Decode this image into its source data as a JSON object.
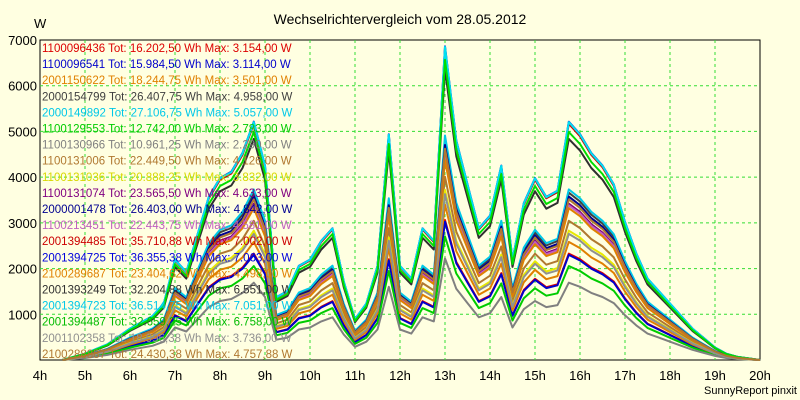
{
  "chart_data": {
    "type": "line",
    "title": "Wechselrichtervergleich vom 28.05.2012",
    "ylabel": "W",
    "footer": "SunnyReport pinxit",
    "ylim": [
      0,
      7000
    ],
    "xlim": [
      4,
      20
    ],
    "grid": true,
    "legend_position": "top-left",
    "y_ticks": [
      1000,
      2000,
      3000,
      4000,
      5000,
      6000,
      7000
    ],
    "x_ticks": [
      {
        "value": 4,
        "label": "4h"
      },
      {
        "value": 5,
        "label": "5h"
      },
      {
        "value": 6,
        "label": "6h"
      },
      {
        "value": 7,
        "label": "7h"
      },
      {
        "value": 8,
        "label": "8h"
      },
      {
        "value": 9,
        "label": "9h"
      },
      {
        "value": 10,
        "label": "10h"
      },
      {
        "value": 11,
        "label": "11h"
      },
      {
        "value": 12,
        "label": "12h"
      },
      {
        "value": 13,
        "label": "13h"
      },
      {
        "value": 14,
        "label": "14h"
      },
      {
        "value": 15,
        "label": "15h"
      },
      {
        "value": 16,
        "label": "16h"
      },
      {
        "value": 17,
        "label": "17h"
      },
      {
        "value": 18,
        "label": "18h"
      },
      {
        "value": 19,
        "label": "19h"
      },
      {
        "value": 20,
        "label": "20h"
      }
    ],
    "x": [
      4.5,
      5,
      5.5,
      6,
      6.5,
      6.75,
      7,
      7.25,
      7.5,
      7.75,
      8,
      8.25,
      8.5,
      8.75,
      9,
      9.25,
      9.5,
      9.75,
      10,
      10.25,
      10.5,
      10.75,
      11,
      11.25,
      11.5,
      11.75,
      12,
      12.25,
      12.5,
      12.75,
      13,
      13.25,
      13.5,
      13.75,
      14,
      14.25,
      14.5,
      14.75,
      15,
      15.25,
      15.5,
      15.75,
      16,
      16.25,
      16.5,
      16.75,
      17,
      17.25,
      17.5,
      17.75,
      18,
      18.25,
      18.5,
      18.75,
      19,
      19.25,
      19.5,
      20
    ],
    "base_shape": [
      0.0,
      0.02,
      0.05,
      0.1,
      0.14,
      0.18,
      0.32,
      0.28,
      0.4,
      0.52,
      0.58,
      0.6,
      0.66,
      0.76,
      0.62,
      0.2,
      0.22,
      0.3,
      0.32,
      0.38,
      0.42,
      0.25,
      0.13,
      0.18,
      0.3,
      0.72,
      0.3,
      0.26,
      0.42,
      0.38,
      1.0,
      0.7,
      0.56,
      0.42,
      0.46,
      0.62,
      0.32,
      0.5,
      0.58,
      0.52,
      0.54,
      0.76,
      0.72,
      0.66,
      0.62,
      0.56,
      0.44,
      0.34,
      0.26,
      0.22,
      0.18,
      0.14,
      0.1,
      0.07,
      0.04,
      0.02,
      0.01,
      0.0
    ],
    "series": [
      {
        "id": "1100096436",
        "total": "16.202,50",
        "max": "3.154,00",
        "max_value": 3154,
        "color": "#dd0000",
        "text_color": "#dd0000",
        "legend_text": "1100096436 Tot: 16.202,50 Wh Max: 3.154,00 W"
      },
      {
        "id": "1100096541",
        "total": "15.984,50",
        "max": "3.114,00",
        "max_value": 3114,
        "color": "#0000cc",
        "text_color": "#0000cc",
        "legend_text": "1100096541 Tot: 15.984,50 Wh Max: 3.114,00 W"
      },
      {
        "id": "2001150622",
        "total": "18.244,75",
        "max": "3.501,00",
        "max_value": 3501,
        "color": "#e08000",
        "text_color": "#e08000",
        "legend_text": "2001150622 Tot: 18.244,75 Wh Max: 3.501,00 W"
      },
      {
        "id": "2000154799",
        "total": "26.407,75",
        "max": "4.958,00",
        "max_value": 4958,
        "color": "#404040",
        "text_color": "#404040",
        "legend_text": "2000154799 Tot: 26.407,75 Wh Max: 4.958,00 W"
      },
      {
        "id": "2000149892",
        "total": "27.106,75",
        "max": "5.057,00",
        "max_value": 5057,
        "color": "#00c8e8",
        "text_color": "#00c8e8",
        "legend_text": "2000149892 Tot: 27.106,75 Wh Max: 5.057,00 W"
      },
      {
        "id": "1100129553",
        "total": "12.742,00",
        "max": "2.783,00",
        "max_value": 2783,
        "color": "#00cc00",
        "text_color": "#00cc00",
        "legend_text": "1100129553 Tot: 12.742,00 Wh Max: 2.783,00 W"
      },
      {
        "id": "1100130966",
        "total": "10.961,25",
        "max": "2.290,00",
        "max_value": 2290,
        "color": "#808080",
        "text_color": "#808080",
        "legend_text": "1100130966 Tot: 10.961,25 Wh Max: 2.290,00 W"
      },
      {
        "id": "1100131006",
        "total": "22.449,50",
        "max": "4.126,00",
        "max_value": 4126,
        "color": "#b07830",
        "text_color": "#b07830",
        "legend_text": "1100131006 Tot: 22.449,50 Wh Max: 4.126,00 W"
      },
      {
        "id": "1100131036",
        "total": "20.888,25",
        "max": "3.832,00",
        "max_value": 3832,
        "color": "#e8e800",
        "text_color": "#d8d800",
        "legend_text": "1100131036 Tot: 20.888,25 Wh Max: 3.832,00 W"
      },
      {
        "id": "1100131074",
        "total": "23.565,50",
        "max": "4.633,00",
        "max_value": 4633,
        "color": "#800080",
        "text_color": "#800080",
        "legend_text": "1100131074 Tot: 23.565,50 Wh Max: 4.633,00 W"
      },
      {
        "id": "2000001478",
        "total": "26.403,00",
        "max": "4.842,00",
        "max_value": 4842,
        "color": "#000090",
        "text_color": "#000090",
        "legend_text": "2000001478 Tot: 26.403,00 Wh Max: 4.842,00 W"
      },
      {
        "id": "1100213451",
        "total": "22.443,75",
        "max": "4.581,00",
        "max_value": 4581,
        "color": "#c060c0",
        "text_color": "#c060c0",
        "legend_text": "1100213451 Tot: 22.443,75 Wh Max: 4.581,00 W"
      },
      {
        "id": "2001394485",
        "total": "35.710,88",
        "max": "7.002,00",
        "max_value": 7002,
        "color": "#cc0000",
        "text_color": "#cc0000",
        "legend_text": "2001394485 Tot: 35.710,88 Wh Max: 7.002,00 W"
      },
      {
        "id": "2001394725",
        "total": "36.355,38",
        "max": "7.063,00",
        "max_value": 7063,
        "color": "#0000dd",
        "text_color": "#0000dd",
        "legend_text": "2001394725 Tot: 36.355,38 Wh Max: 7.063,00 W"
      },
      {
        "id": "2100289687",
        "total": "23.404,62",
        "max": "4.498,00",
        "max_value": 4498,
        "color": "#e08000",
        "text_color": "#e08000",
        "legend_text": "2100289687 Tot: 23.404,62 Wh Max: 4.498,00 W"
      },
      {
        "id": "2001393249",
        "total": "32.204,88",
        "max": "6.551,00",
        "max_value": 6551,
        "color": "#303030",
        "text_color": "#303030",
        "legend_text": "2001393249 Tot: 32.204,88 Wh Max: 6.551,00 W"
      },
      {
        "id": "2001394723",
        "total": "36.514,75",
        "max": "7.051,00",
        "max_value": 7051,
        "color": "#00e0f0",
        "text_color": "#00c8e8",
        "legend_text": "2001394723 Tot: 36.514,75 Wh Max: 7.051,00 W"
      },
      {
        "id": "2001394487",
        "total": "32.659,25",
        "max": "6.758,00",
        "max_value": 6758,
        "color": "#00dd00",
        "text_color": "#00bb00",
        "legend_text": "2001394487 Tot: 32.659,25 Wh Max: 6.758,00 W"
      },
      {
        "id": "2001102358",
        "total": "18.996,38",
        "max": "3.736,00",
        "max_value": 3736,
        "color": "#909090",
        "text_color": "#909090",
        "legend_text": "2001102358 Tot: 18.996,38 Wh Max: 3.736,00 W"
      },
      {
        "id": "2100288887",
        "total": "24.430,38",
        "max": "4.757,88",
        "max_value": 4757.88,
        "color": "#b07830",
        "text_color": "#b07830",
        "legend_text": "2100288887 Tot: 24.430,38 Wh Max: 4.757,88 W"
      }
    ]
  }
}
